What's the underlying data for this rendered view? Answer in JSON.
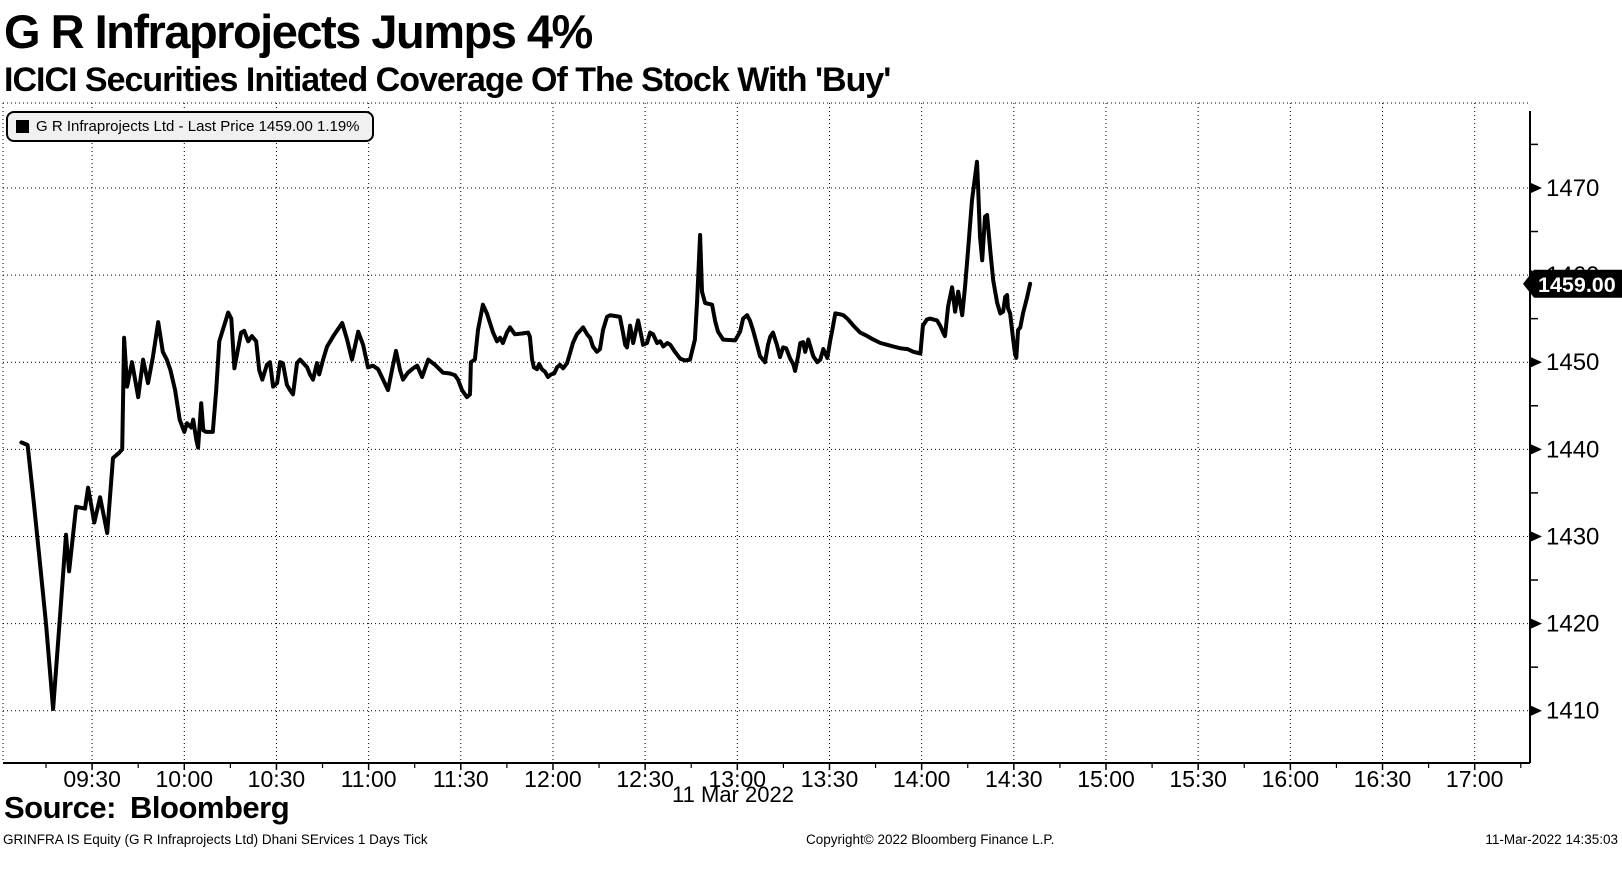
{
  "header": {
    "title": "G R Infraprojects Jumps 4%",
    "subtitle": "ICICI Securities Initiated Coverage Of The Stock With 'Buy'"
  },
  "legend": {
    "text": "G R Infraprojects Ltd - Last Price 1459.00  1.19%"
  },
  "price_badge": "1459.00",
  "date_label": "11 Mar 2022",
  "source_label": "Source:  Bloomberg",
  "footer": {
    "left": "GRINFRA IS Equity (G R Infraprojects Ltd) Dhani SErvices 1 Days  Tick",
    "center": "Copyright© 2022 Bloomberg Finance L.P.",
    "right": "11-Mar-2022 14:35:03"
  },
  "chart_data": {
    "type": "line",
    "title": "G R Infraprojects Ltd - Last Price",
    "last_price": 1459.0,
    "change_pct": "1.19%",
    "line_color": "#000000",
    "grid_on": true,
    "legend_position": "top-left",
    "x_axis": {
      "label": "11 Mar 2022",
      "tick_labels": [
        "09:30",
        "10:00",
        "10:30",
        "11:00",
        "11:30",
        "12:00",
        "12:30",
        "13:00",
        "13:30",
        "14:00",
        "14:30",
        "15:00",
        "15:30",
        "16:00",
        "16:30",
        "17:00"
      ],
      "tick_minutes": [
        570,
        600,
        630,
        660,
        690,
        720,
        750,
        780,
        810,
        840,
        870,
        900,
        930,
        960,
        990,
        1020
      ],
      "minor_tick_step_min": 15,
      "domain_minutes": [
        541,
        1038
      ]
    },
    "y_axis": {
      "tick_values": [
        1410,
        1420,
        1430,
        1440,
        1450,
        1460,
        1470
      ],
      "minor_tick_values": [
        1415,
        1425,
        1435,
        1445,
        1455,
        1465,
        1475
      ],
      "domain": [
        1404.0,
        1479.75
      ]
    },
    "series": [
      {
        "name": "G R Infraprojects Ltd - Last Price",
        "points": [
          [
            547,
            1440.8
          ],
          [
            549,
            1440.5
          ],
          [
            551,
            1434
          ],
          [
            553,
            1427
          ],
          [
            555,
            1420
          ],
          [
            557.3,
            1410.2
          ],
          [
            559.5,
            1420.5
          ],
          [
            561.5,
            1430.2
          ],
          [
            562.5,
            1426
          ],
          [
            564.8,
            1433.4
          ],
          [
            567.7,
            1433.2
          ],
          [
            568.7,
            1435.6
          ],
          [
            570.7,
            1431.6
          ],
          [
            572.6,
            1434.5
          ],
          [
            574.9,
            1430.4
          ],
          [
            576.8,
            1439
          ],
          [
            578.8,
            1439.6
          ],
          [
            579.8,
            1440
          ],
          [
            580.4,
            1452.8
          ],
          [
            581.4,
            1447.2
          ],
          [
            583,
            1450
          ],
          [
            585,
            1446
          ],
          [
            586.6,
            1450.3
          ],
          [
            588.2,
            1447.6
          ],
          [
            589.8,
            1450.6
          ],
          [
            591.5,
            1454.6
          ],
          [
            593,
            1451.2
          ],
          [
            594.3,
            1450.3
          ],
          [
            595.5,
            1449.1
          ],
          [
            597,
            1446.8
          ],
          [
            598.5,
            1443.4
          ],
          [
            600,
            1442
          ],
          [
            600.9,
            1443
          ],
          [
            602.3,
            1442.5
          ],
          [
            602.9,
            1443.4
          ],
          [
            603.9,
            1441.1
          ],
          [
            604.5,
            1440.2
          ],
          [
            605.5,
            1445.3
          ],
          [
            606.2,
            1442.2
          ],
          [
            607,
            1442
          ],
          [
            609.3,
            1442
          ],
          [
            610.4,
            1446.8
          ],
          [
            611.4,
            1452.4
          ],
          [
            614.3,
            1455.7
          ],
          [
            615.3,
            1455
          ],
          [
            616.3,
            1449.3
          ],
          [
            618.5,
            1453.4
          ],
          [
            619.5,
            1453.6
          ],
          [
            620.8,
            1452.4
          ],
          [
            622,
            1453
          ],
          [
            623.4,
            1452.4
          ],
          [
            624.4,
            1449.1
          ],
          [
            625.4,
            1448
          ],
          [
            626.9,
            1449.7
          ],
          [
            627.9,
            1450
          ],
          [
            628.9,
            1447.2
          ],
          [
            630.2,
            1447.6
          ],
          [
            631.2,
            1450
          ],
          [
            632.1,
            1449.9
          ],
          [
            633.4,
            1447.4
          ],
          [
            634.4,
            1446.8
          ],
          [
            635.4,
            1446.3
          ],
          [
            636.7,
            1449.9
          ],
          [
            637.7,
            1450.3
          ],
          [
            640,
            1449.4
          ],
          [
            640.9,
            1448.6
          ],
          [
            641.9,
            1448
          ],
          [
            643.2,
            1449.9
          ],
          [
            643.9,
            1448.6
          ],
          [
            645.2,
            1450.3
          ],
          [
            646.5,
            1451.8
          ],
          [
            648.7,
            1453.1
          ],
          [
            651.4,
            1454.5
          ],
          [
            653,
            1452.6
          ],
          [
            654.6,
            1450.3
          ],
          [
            656.6,
            1453.5
          ],
          [
            658.2,
            1452
          ],
          [
            659.8,
            1449.4
          ],
          [
            661.4,
            1449.6
          ],
          [
            663.1,
            1449.2
          ],
          [
            664.7,
            1448
          ],
          [
            666.3,
            1446.8
          ],
          [
            667.6,
            1449.1
          ],
          [
            668.9,
            1451.3
          ],
          [
            670.2,
            1449.1
          ],
          [
            671.2,
            1448
          ],
          [
            672.8,
            1448.8
          ],
          [
            674.5,
            1449.3
          ],
          [
            675.8,
            1449.6
          ],
          [
            677.4,
            1448.3
          ],
          [
            679.4,
            1450.3
          ],
          [
            681.6,
            1449.7
          ],
          [
            684.2,
            1448.8
          ],
          [
            686.5,
            1448.7
          ],
          [
            688.1,
            1448.5
          ],
          [
            689.1,
            1448
          ],
          [
            690.4,
            1446.8
          ],
          [
            692,
            1446
          ],
          [
            693,
            1446.3
          ],
          [
            693.3,
            1450
          ],
          [
            694.6,
            1450.3
          ],
          [
            695.6,
            1453.7
          ],
          [
            697.2,
            1456.6
          ],
          [
            698.5,
            1455.6
          ],
          [
            699.5,
            1454.5
          ],
          [
            700.5,
            1453.4
          ],
          [
            701.8,
            1452.4
          ],
          [
            702.8,
            1452.8
          ],
          [
            703.7,
            1452.2
          ],
          [
            705,
            1453.4
          ],
          [
            706,
            1454
          ],
          [
            707.6,
            1453.2
          ],
          [
            709.9,
            1453.3
          ],
          [
            711.9,
            1453.4
          ],
          [
            712.5,
            1452.9
          ],
          [
            713.2,
            1450.3
          ],
          [
            713.8,
            1449.4
          ],
          [
            714.8,
            1449.2
          ],
          [
            715.5,
            1449.8
          ],
          [
            716.4,
            1449.2
          ],
          [
            717.4,
            1448.9
          ],
          [
            718.4,
            1448.3
          ],
          [
            719.4,
            1448.6
          ],
          [
            720.4,
            1448.7
          ],
          [
            721.3,
            1449.4
          ],
          [
            722.3,
            1449.7
          ],
          [
            723.3,
            1449.3
          ],
          [
            724.6,
            1449.9
          ],
          [
            725.6,
            1451.1
          ],
          [
            726.5,
            1452.2
          ],
          [
            727.8,
            1453.2
          ],
          [
            729.8,
            1454
          ],
          [
            731.1,
            1453.2
          ],
          [
            732.1,
            1452.8
          ],
          [
            733,
            1451.8
          ],
          [
            734.3,
            1451.2
          ],
          [
            735.3,
            1451.5
          ],
          [
            736.3,
            1453.7
          ],
          [
            737.6,
            1455.2
          ],
          [
            738.6,
            1455.4
          ],
          [
            740.2,
            1455.3
          ],
          [
            741.8,
            1455.2
          ],
          [
            742.8,
            1453.4
          ],
          [
            743.5,
            1452
          ],
          [
            744.1,
            1451.7
          ],
          [
            745.1,
            1454.2
          ],
          [
            746.1,
            1452.2
          ],
          [
            747.7,
            1454.8
          ],
          [
            749,
            1452.6
          ],
          [
            749.3,
            1452
          ],
          [
            750.6,
            1452.2
          ],
          [
            751.6,
            1453.4
          ],
          [
            752.6,
            1453.2
          ],
          [
            753.9,
            1452.2
          ],
          [
            754.9,
            1452.4
          ],
          [
            755.9,
            1451.8
          ],
          [
            757.2,
            1452.2
          ],
          [
            758.2,
            1452
          ],
          [
            759.5,
            1451.3
          ],
          [
            761.4,
            1450.4
          ],
          [
            763,
            1450.2
          ],
          [
            764.6,
            1450.3
          ],
          [
            766.2,
            1452.6
          ],
          [
            766.9,
            1457
          ],
          [
            767.9,
            1464.6
          ],
          [
            768.5,
            1458.1
          ],
          [
            769.5,
            1456.8
          ],
          [
            771.8,
            1456.6
          ],
          [
            772.8,
            1454.7
          ],
          [
            773.7,
            1453.5
          ],
          [
            775.4,
            1452.6
          ],
          [
            779.3,
            1452.5
          ],
          [
            780.9,
            1453.5
          ],
          [
            781.9,
            1455
          ],
          [
            783.2,
            1455.4
          ],
          [
            784.1,
            1454.8
          ],
          [
            785.1,
            1453.7
          ],
          [
            786.4,
            1452
          ],
          [
            787.4,
            1450.7
          ],
          [
            789,
            1450
          ],
          [
            790,
            1452
          ],
          [
            790.7,
            1452.9
          ],
          [
            791.6,
            1453.4
          ],
          [
            792.9,
            1452
          ],
          [
            793.9,
            1450.6
          ],
          [
            794.9,
            1451.7
          ],
          [
            795.9,
            1451.6
          ],
          [
            797.2,
            1450.4
          ],
          [
            798.2,
            1449.8
          ],
          [
            798.8,
            1449
          ],
          [
            799.8,
            1450.7
          ],
          [
            800.5,
            1452.2
          ],
          [
            801.4,
            1452.3
          ],
          [
            802.1,
            1451.2
          ],
          [
            803.1,
            1452.6
          ],
          [
            804.7,
            1450.7
          ],
          [
            806,
            1450
          ],
          [
            807,
            1450.3
          ],
          [
            808,
            1451.5
          ],
          [
            809.3,
            1450.5
          ],
          [
            810.3,
            1452.6
          ],
          [
            810.9,
            1453.7
          ],
          [
            811.9,
            1455.6
          ],
          [
            813.5,
            1455.5
          ],
          [
            814.5,
            1455.4
          ],
          [
            815.8,
            1455
          ],
          [
            817.8,
            1454.2
          ],
          [
            820,
            1453.4
          ],
          [
            822.3,
            1453
          ],
          [
            824.3,
            1452.6
          ],
          [
            826.6,
            1452.2
          ],
          [
            828.8,
            1452
          ],
          [
            830.8,
            1451.8
          ],
          [
            833.1,
            1451.6
          ],
          [
            835.4,
            1451.5
          ],
          [
            837.3,
            1451.2
          ],
          [
            839.6,
            1451
          ],
          [
            840.4,
            1454.2
          ],
          [
            841.7,
            1454.9
          ],
          [
            842.7,
            1455
          ],
          [
            845,
            1454.8
          ],
          [
            846,
            1454.2
          ],
          [
            847,
            1453.4
          ],
          [
            847.6,
            1453
          ],
          [
            848.6,
            1456.4
          ],
          [
            849.9,
            1458.6
          ],
          [
            850.9,
            1455.8
          ],
          [
            851.9,
            1458.1
          ],
          [
            853.2,
            1455.4
          ],
          [
            854.1,
            1458.6
          ],
          [
            855.1,
            1462.9
          ],
          [
            856.4,
            1468.6
          ],
          [
            858,
            1473
          ],
          [
            858.4,
            1469.8
          ],
          [
            859,
            1464.4
          ],
          [
            859.7,
            1461.7
          ],
          [
            860.6,
            1466.7
          ],
          [
            861.3,
            1466.9
          ],
          [
            862.3,
            1462.9
          ],
          [
            863.3,
            1459.4
          ],
          [
            864.6,
            1456.8
          ],
          [
            865.6,
            1455.6
          ],
          [
            866.5,
            1455.8
          ],
          [
            867.2,
            1457.5
          ],
          [
            867.8,
            1457.7
          ],
          [
            868.1,
            1456.2
          ],
          [
            868.8,
            1455.6
          ],
          [
            869.8,
            1452.6
          ],
          [
            870.4,
            1450.9
          ],
          [
            870.8,
            1450.5
          ],
          [
            871.4,
            1453.7
          ],
          [
            872.1,
            1454
          ],
          [
            873,
            1455.6
          ],
          [
            874.3,
            1457.4
          ],
          [
            875.3,
            1459
          ]
        ]
      }
    ]
  }
}
